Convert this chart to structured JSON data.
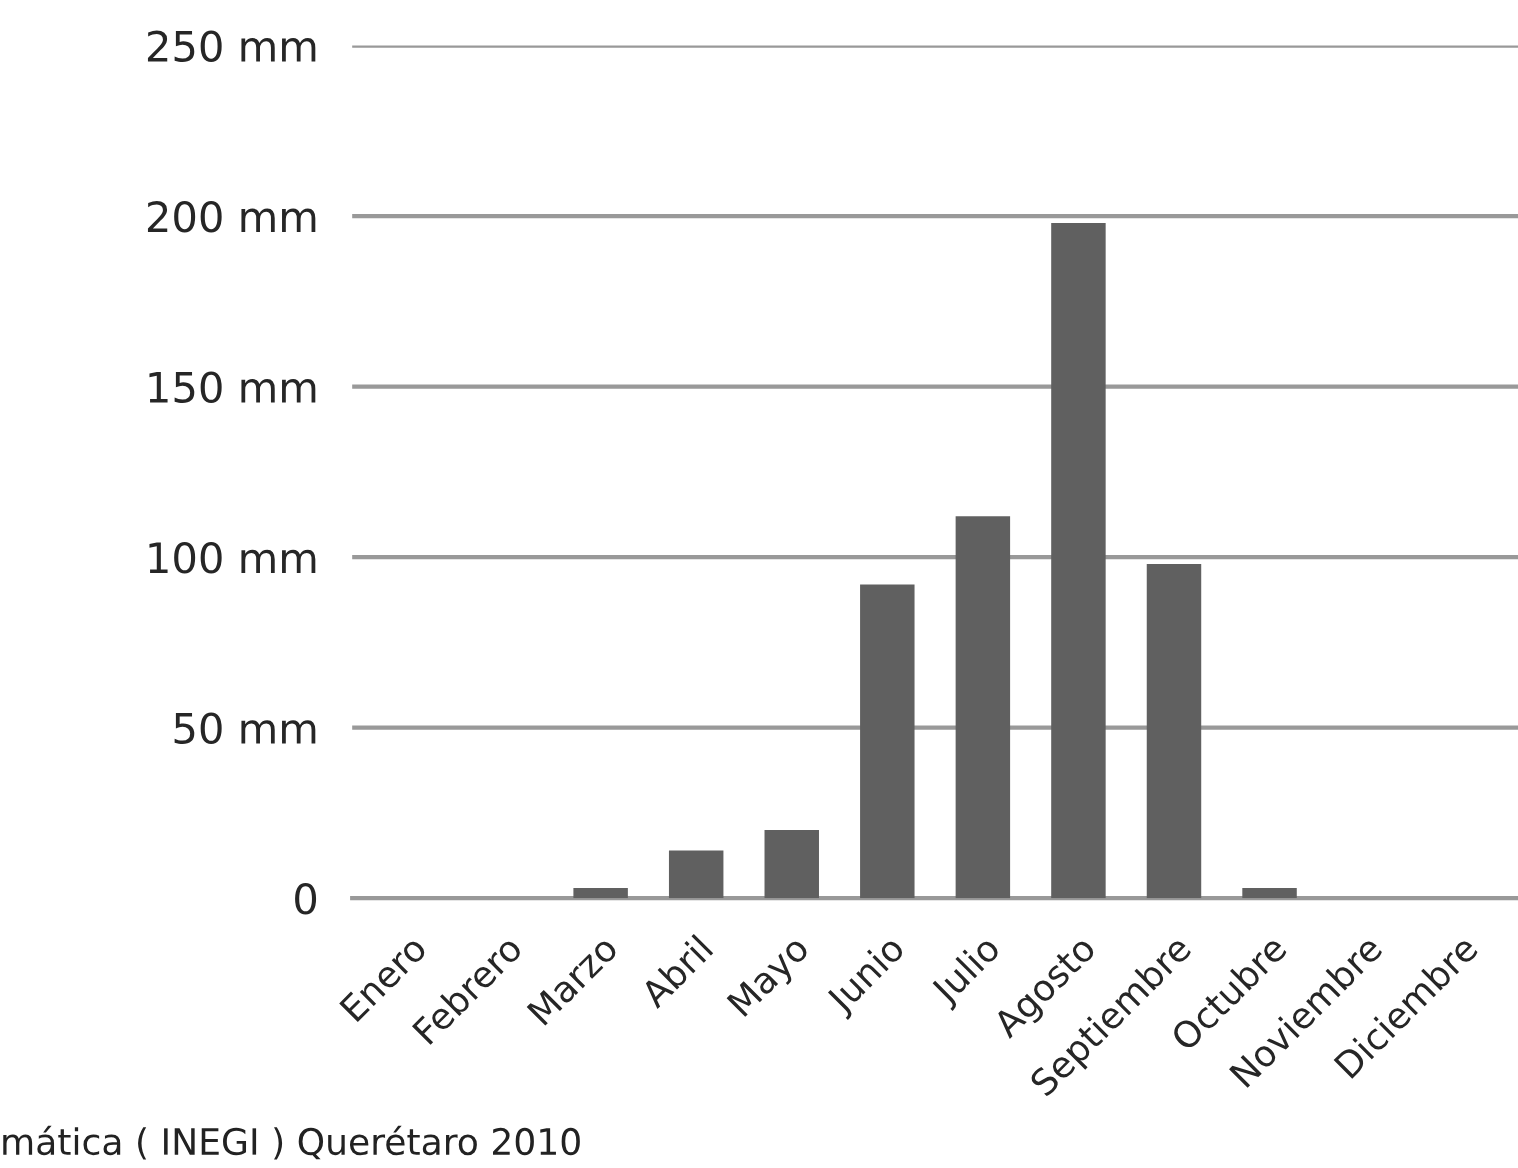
{
  "chart_data": {
    "type": "bar",
    "categories": [
      "Enero",
      "Febrero",
      "Marzo",
      "Abril",
      "Mayo",
      "Junio",
      "Julio",
      "Agosto",
      "Septiembre",
      "Octubre",
      "Noviembre",
      "Diciembre"
    ],
    "values": [
      0,
      0,
      3,
      14,
      20,
      92,
      112,
      198,
      98,
      3,
      0,
      0
    ],
    "color": "#606060",
    "ylim": [
      0,
      250
    ],
    "yticks": [
      {
        "value": 0,
        "label": "0"
      },
      {
        "value": 50,
        "label": "50 mm"
      },
      {
        "value": 100,
        "label": "100 mm"
      },
      {
        "value": 150,
        "label": "150 mm"
      },
      {
        "value": 200,
        "label": "200 mm"
      },
      {
        "value": 250,
        "label": "250 mm"
      }
    ],
    "grid": "y",
    "annotations": [
      "mática ( INEGI ) Querétaro 2010"
    ]
  }
}
